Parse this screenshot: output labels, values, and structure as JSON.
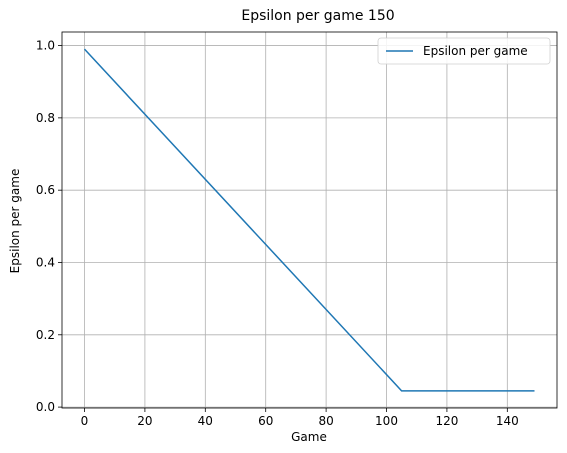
{
  "chart_data": {
    "type": "line",
    "title": "Epsilon per game 150",
    "xlabel": "Game",
    "ylabel": "Epsilon per game",
    "xlim": [
      -7.45,
      156.45
    ],
    "ylim": [
      -0.0025,
      1.0375
    ],
    "xticks": [
      0,
      20,
      40,
      60,
      80,
      100,
      120,
      140
    ],
    "xtick_labels": [
      "0",
      "20",
      "40",
      "60",
      "80",
      "100",
      "120",
      "140"
    ],
    "yticks": [
      0.0,
      0.2,
      0.4,
      0.6,
      0.8,
      1.0
    ],
    "ytick_labels": [
      "0.0",
      "0.2",
      "0.4",
      "0.6",
      "0.8",
      "1.0"
    ],
    "grid": true,
    "legend": {
      "placement": "top-right",
      "entries": [
        "Epsilon per game"
      ]
    },
    "series": [
      {
        "name": "Epsilon per game",
        "color": "#1f77b4",
        "x": [
          0,
          105,
          149
        ],
        "y": [
          0.99,
          0.045,
          0.045
        ]
      }
    ]
  }
}
